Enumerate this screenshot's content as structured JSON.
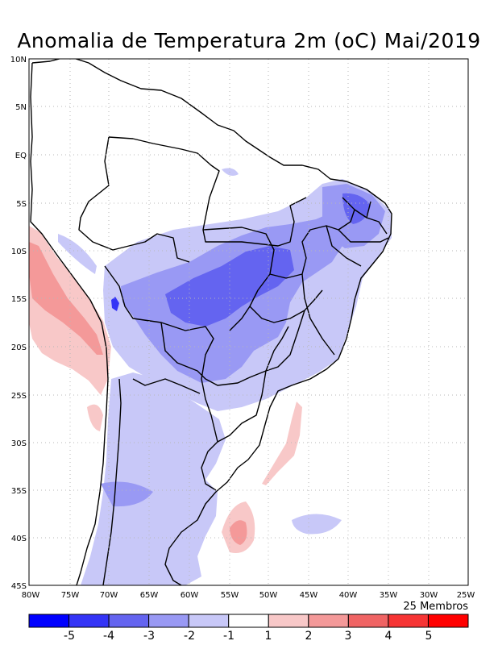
{
  "title": "Anomalia de Temperatura 2m (oC) Mai/2019",
  "members_label": "25 Membros",
  "lat_labels": [
    "10N",
    "5N",
    "EQ",
    "5S",
    "10S",
    "15S",
    "20S",
    "25S",
    "30S",
    "35S",
    "40S",
    "45S"
  ],
  "lon_labels": [
    "80W",
    "75W",
    "70W",
    "65W",
    "60W",
    "55W",
    "50W",
    "45W",
    "40W",
    "35W",
    "30W",
    "25W"
  ],
  "colorbar": {
    "colors": [
      "#0000ff",
      "#3434f6",
      "#6464f0",
      "#9999f4",
      "#c8c8f8",
      "#ffffff",
      "#f8c8c8",
      "#f49999",
      "#f06464",
      "#f63434",
      "#ff0000"
    ],
    "labels": [
      "-5",
      "-4",
      "-3",
      "-2",
      "-1",
      "1",
      "2",
      "3",
      "4",
      "5"
    ]
  },
  "legend": {
    "colors": {
      "lt_blue": "#c8c8f8",
      "mid_blue": "#9999f4",
      "dk_blue": "#6464f0",
      "deep_blue": "#3434f6",
      "lt_red": "#f8c8c8",
      "mid_red": "#f49999"
    }
  }
}
